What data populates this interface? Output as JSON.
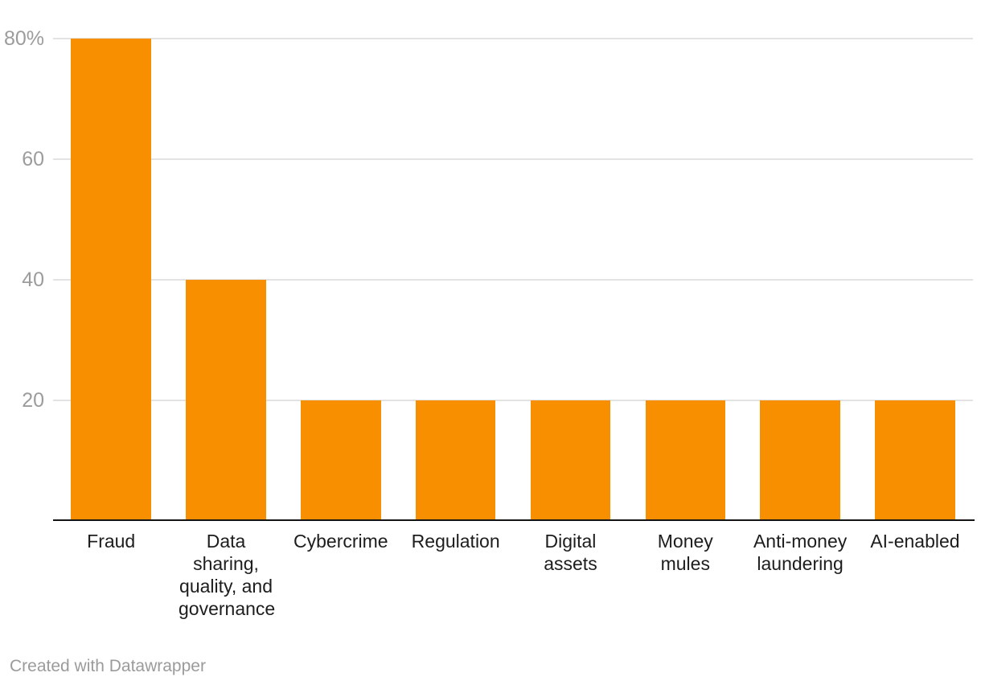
{
  "chart_data": {
    "type": "bar",
    "title": "",
    "xlabel": "",
    "ylabel": "",
    "categories": [
      "Fraud",
      "Data sharing, quality, and governance",
      "Cybercrime",
      "Regulation",
      "Digital assets",
      "Money mules",
      "Anti-money laundering",
      "AI-enabled"
    ],
    "values": [
      80,
      40,
      20,
      20,
      20,
      20,
      20,
      20
    ],
    "unit": "%",
    "ylim": [
      0,
      80
    ],
    "yticks": [
      20,
      40,
      60,
      80
    ],
    "ytick_labels": [
      "20",
      "40",
      "60",
      "80%"
    ],
    "grid": "horizontal",
    "legend": "none",
    "bar_color": "#f88f00"
  },
  "colors": {
    "bar": "#f88f00",
    "gridline": "#e3e3e3",
    "axis_line": "#141414",
    "y_tick_text": "#9c9c9c",
    "x_tick_text": "#1d1d1e",
    "footer_text": "#9b9b9b",
    "background": "#ffffff"
  },
  "footer": {
    "attribution": "Created with Datawrapper"
  }
}
